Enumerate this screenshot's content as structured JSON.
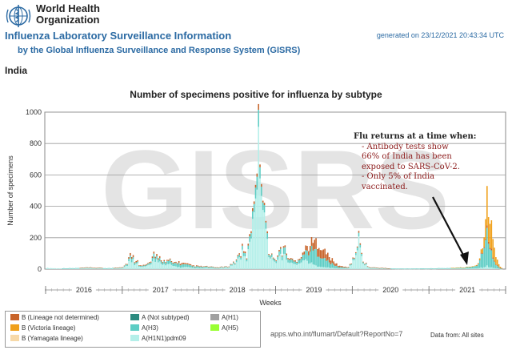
{
  "header": {
    "org_line1": "World Health",
    "org_line2": "Organization",
    "title": "Influenza Laboratory Surveillance Information",
    "subtitle": "by the Global Influenza Surveillance and Response System (GISRS)",
    "generated": "generated on 23/12/2021 20:43:34 UTC",
    "country": "India",
    "logo_icon": "who-emblem-icon"
  },
  "chart_data": {
    "type": "bar",
    "stacked": true,
    "title": "Number of specimens positive for influenza by subtype",
    "xlabel": "Weeks",
    "ylabel": "Number of specimens",
    "ylim": [
      0,
      1000
    ],
    "yticks": [
      0,
      200,
      400,
      600,
      800,
      1000
    ],
    "year_labels": [
      "2016",
      "2017",
      "2018",
      "2019",
      "2020",
      "2021"
    ],
    "grid": true,
    "legend_position": "bottom-left",
    "watermark": "GISRS",
    "series_order": [
      "B (Lineage not determined)",
      "B (Victoria lineage)",
      "B (Yamagata lineage)",
      "A (Not subtyped)",
      "A(H3)",
      "A(H1N1)pdm09",
      "A(H1)",
      "A(H5)"
    ],
    "colors": {
      "B (Lineage not determined)": "#c8642a",
      "B (Victoria lineage)": "#f0a01a",
      "B (Yamagata lineage)": "#f7d9a8",
      "A (Not subtyped)": "#2c8a7f",
      "A(H3)": "#5ccdc4",
      "A(H1N1)pdm09": "#b4efe9",
      "A(H1)": "#a0a0a0",
      "A(H5)": "#99ff33"
    },
    "weeks": [
      {
        "year": 2016,
        "week": 1,
        "h1n1": 8,
        "h3": 0,
        "bnd": 0,
        "bvic": 0
      },
      {
        "year": 2016,
        "week": 8,
        "h1n1": 5,
        "h3": 0,
        "bnd": 0,
        "bvic": 0
      },
      {
        "year": 2016,
        "week": 20,
        "h1n1": 4,
        "h3": 2,
        "bnd": 0,
        "bvic": 0
      },
      {
        "year": 2016,
        "week": 30,
        "h1n1": 6,
        "h3": 3,
        "bnd": 1,
        "bvic": 0
      },
      {
        "year": 2016,
        "week": 45,
        "h1n1": 4,
        "h3": 2,
        "bnd": 0,
        "bvic": 0
      },
      {
        "year": 2017,
        "week": 1,
        "h1n1": 10,
        "h3": 3,
        "bnd": 2,
        "bvic": 0
      },
      {
        "year": 2017,
        "week": 4,
        "h1n1": 25,
        "h3": 10,
        "bnd": 5,
        "bvic": 0
      },
      {
        "year": 2017,
        "week": 5,
        "h1n1": 50,
        "h3": 15,
        "bnd": 10,
        "bvic": 0
      },
      {
        "year": 2017,
        "week": 6,
        "h1n1": 60,
        "h3": 15,
        "bnd": 15,
        "bvic": 0
      },
      {
        "year": 2017,
        "week": 7,
        "h1n1": 40,
        "h3": 20,
        "bnd": 10,
        "bvic": 0
      },
      {
        "year": 2017,
        "week": 8,
        "h1n1": 55,
        "h3": 10,
        "bnd": 12,
        "bvic": 0
      },
      {
        "year": 2017,
        "week": 9,
        "h1n1": 30,
        "h3": 15,
        "bnd": 8,
        "bvic": 0
      },
      {
        "year": 2017,
        "week": 10,
        "h1n1": 45,
        "h3": 10,
        "bnd": 10,
        "bvic": 0
      },
      {
        "year": 2017,
        "week": 12,
        "h1n1": 20,
        "h3": 8,
        "bnd": 5,
        "bvic": 0
      },
      {
        "year": 2017,
        "week": 16,
        "h1n1": 15,
        "h3": 5,
        "bnd": 4,
        "bvic": 0
      },
      {
        "year": 2017,
        "week": 20,
        "h1n1": 30,
        "h3": 12,
        "bnd": 6,
        "bvic": 0
      },
      {
        "year": 2017,
        "week": 22,
        "h1n1": 55,
        "h3": 25,
        "bnd": 10,
        "bvic": 0
      },
      {
        "year": 2017,
        "week": 23,
        "h1n1": 40,
        "h3": 20,
        "bnd": 8,
        "bvic": 0
      },
      {
        "year": 2017,
        "week": 24,
        "h1n1": 60,
        "h3": 20,
        "bnd": 12,
        "bvic": 0
      },
      {
        "year": 2017,
        "week": 26,
        "h1n1": 45,
        "h3": 20,
        "bnd": 10,
        "bvic": 0
      },
      {
        "year": 2017,
        "week": 28,
        "h1n1": 35,
        "h3": 15,
        "bnd": 8,
        "bvic": 0
      },
      {
        "year": 2017,
        "week": 30,
        "h1n1": 25,
        "h3": 15,
        "bnd": 6,
        "bvic": 0
      },
      {
        "year": 2017,
        "week": 33,
        "h1n1": 30,
        "h3": 20,
        "bnd": 6,
        "bvic": 0
      },
      {
        "year": 2017,
        "week": 35,
        "h1n1": 20,
        "h3": 15,
        "bnd": 5,
        "bvic": 0
      },
      {
        "year": 2017,
        "week": 38,
        "h1n1": 15,
        "h3": 25,
        "bnd": 8,
        "bvic": 0
      },
      {
        "year": 2017,
        "week": 40,
        "h1n1": 10,
        "h3": 20,
        "bnd": 10,
        "bvic": 0
      },
      {
        "year": 2017,
        "week": 44,
        "h1n1": 12,
        "h3": 15,
        "bnd": 6,
        "bvic": 0
      },
      {
        "year": 2017,
        "week": 48,
        "h1n1": 8,
        "h3": 10,
        "bnd": 5,
        "bvic": 0
      },
      {
        "year": 2018,
        "week": 1,
        "h1n1": 6,
        "h3": 8,
        "bnd": 4,
        "bvic": 0
      },
      {
        "year": 2018,
        "week": 6,
        "h1n1": 8,
        "h3": 6,
        "bnd": 3,
        "bvic": 0
      },
      {
        "year": 2018,
        "week": 12,
        "h1n1": 5,
        "h3": 4,
        "bnd": 2,
        "bvic": 0
      },
      {
        "year": 2018,
        "week": 20,
        "h1n1": 10,
        "h3": 4,
        "bnd": 2,
        "bvic": 0
      },
      {
        "year": 2018,
        "week": 26,
        "h1n1": 40,
        "h3": 10,
        "bnd": 5,
        "bvic": 0
      },
      {
        "year": 2018,
        "week": 28,
        "h1n1": 90,
        "h3": 20,
        "bnd": 10,
        "bvic": 0
      },
      {
        "year": 2018,
        "week": 29,
        "h1n1": 70,
        "h3": 15,
        "bnd": 10,
        "bvic": 0
      },
      {
        "year": 2018,
        "week": 30,
        "h1n1": 100,
        "h3": 20,
        "bnd": 10,
        "bvic": 0
      },
      {
        "year": 2018,
        "week": 31,
        "h1n1": 80,
        "h3": 20,
        "bnd": 10,
        "bvic": 0
      },
      {
        "year": 2018,
        "week": 33,
        "h1n1": 60,
        "h3": 15,
        "bnd": 8,
        "bvic": 0
      },
      {
        "year": 2018,
        "week": 34,
        "h1n1": 110,
        "h3": 20,
        "bnd": 10,
        "bvic": 0
      },
      {
        "year": 2018,
        "week": 35,
        "h1n1": 150,
        "h3": 30,
        "bnd": 12,
        "bvic": 0
      },
      {
        "year": 2018,
        "week": 36,
        "h1n1": 230,
        "h3": 40,
        "bnd": 15,
        "bvic": 0
      },
      {
        "year": 2018,
        "week": 37,
        "h1n1": 330,
        "h3": 50,
        "bnd": 20,
        "bvic": 0
      },
      {
        "year": 2018,
        "week": 38,
        "h1n1": 420,
        "h3": 60,
        "bnd": 20,
        "bvic": 0
      },
      {
        "year": 2018,
        "week": 39,
        "h1n1": 520,
        "h3": 80,
        "bnd": 20,
        "bvic": 0
      },
      {
        "year": 2018,
        "week": 40,
        "h1n1": 620,
        "h3": 100,
        "bnd": 25,
        "bvic": 0
      },
      {
        "year": 2018,
        "week": 41,
        "h1n1": 750,
        "h3": 90,
        "bnd": 30,
        "bvic": 0
      },
      {
        "year": 2018,
        "week": 42,
        "h1n1": 650,
        "h3": 80,
        "bnd": 20,
        "bvic": 0
      },
      {
        "year": 2018,
        "week": 43,
        "h1n1": 560,
        "h3": 70,
        "bnd": 20,
        "bvic": 0
      },
      {
        "year": 2018,
        "week": 44,
        "h1n1": 480,
        "h3": 60,
        "bnd": 15,
        "bvic": 0
      },
      {
        "year": 2018,
        "week": 45,
        "h1n1": 380,
        "h3": 50,
        "bnd": 15,
        "bvic": 0
      },
      {
        "year": 2018,
        "week": 46,
        "h1n1": 260,
        "h3": 40,
        "bnd": 10,
        "bvic": 0
      },
      {
        "year": 2018,
        "week": 47,
        "h1n1": 160,
        "h3": 30,
        "bnd": 10,
        "bvic": 0
      },
      {
        "year": 2018,
        "week": 48,
        "h1n1": 100,
        "h3": 20,
        "bnd": 8,
        "bvic": 0
      },
      {
        "year": 2018,
        "week": 50,
        "h1n1": 70,
        "h3": 15,
        "bnd": 5,
        "bvic": 0
      },
      {
        "year": 2018,
        "week": 52,
        "h1n1": 40,
        "h3": 10,
        "bnd": 5,
        "bvic": 0
      },
      {
        "year": 2019,
        "week": 2,
        "h1n1": 60,
        "h3": 20,
        "bnd": 8,
        "bvic": 0
      },
      {
        "year": 2019,
        "week": 4,
        "h1n1": 90,
        "h3": 30,
        "bnd": 10,
        "bvic": 0
      },
      {
        "year": 2019,
        "week": 5,
        "h1n1": 70,
        "h3": 30,
        "bnd": 8,
        "bvic": 0
      },
      {
        "year": 2019,
        "week": 6,
        "h1n1": 100,
        "h3": 40,
        "bnd": 10,
        "bvic": 0
      },
      {
        "year": 2019,
        "week": 8,
        "h1n1": 60,
        "h3": 30,
        "bnd": 10,
        "bvic": 0
      },
      {
        "year": 2019,
        "week": 10,
        "h1n1": 40,
        "h3": 20,
        "bnd": 8,
        "bvic": 0
      },
      {
        "year": 2019,
        "week": 14,
        "h1n1": 30,
        "h3": 15,
        "bnd": 6,
        "bvic": 0
      },
      {
        "year": 2019,
        "week": 18,
        "h1n1": 50,
        "h3": 30,
        "bnd": 10,
        "bvic": 0
      },
      {
        "year": 2019,
        "week": 20,
        "h1n1": 60,
        "h3": 40,
        "bnd": 20,
        "bvic": 0
      },
      {
        "year": 2019,
        "week": 22,
        "h1n1": 50,
        "h3": 60,
        "bnd": 30,
        "bvic": 0
      },
      {
        "year": 2019,
        "week": 24,
        "h1n1": 40,
        "h3": 80,
        "bnd": 40,
        "bvic": 0
      },
      {
        "year": 2019,
        "week": 26,
        "h1n1": 30,
        "h3": 90,
        "bnd": 50,
        "bvic": 0
      },
      {
        "year": 2019,
        "week": 28,
        "h1n1": 20,
        "h3": 90,
        "bnd": 60,
        "bvic": 0
      },
      {
        "year": 2019,
        "week": 30,
        "h1n1": 20,
        "h3": 80,
        "bnd": 70,
        "bvic": 0
      },
      {
        "year": 2019,
        "week": 32,
        "h1n1": 15,
        "h3": 60,
        "bnd": 60,
        "bvic": 0
      },
      {
        "year": 2019,
        "week": 34,
        "h1n1": 10,
        "h3": 50,
        "bnd": 50,
        "bvic": 0
      },
      {
        "year": 2019,
        "week": 36,
        "h1n1": 10,
        "h3": 40,
        "bnd": 40,
        "bvic": 0
      },
      {
        "year": 2019,
        "week": 38,
        "h1n1": 8,
        "h3": 30,
        "bnd": 30,
        "bvic": 0
      },
      {
        "year": 2019,
        "week": 40,
        "h1n1": 6,
        "h3": 20,
        "bnd": 20,
        "bvic": 0
      },
      {
        "year": 2019,
        "week": 43,
        "h1n1": 5,
        "h3": 10,
        "bnd": 10,
        "bvic": 0
      },
      {
        "year": 2019,
        "week": 46,
        "h1n1": 4,
        "h3": 6,
        "bnd": 6,
        "bvic": 0
      },
      {
        "year": 2019,
        "week": 50,
        "h1n1": 6,
        "h3": 4,
        "bnd": 4,
        "bvic": 0
      },
      {
        "year": 2020,
        "week": 2,
        "h1n1": 60,
        "h3": 10,
        "bnd": 5,
        "bvic": 0
      },
      {
        "year": 2020,
        "week": 4,
        "h1n1": 140,
        "h3": 20,
        "bnd": 8,
        "bvic": 0
      },
      {
        "year": 2020,
        "week": 5,
        "h1n1": 180,
        "h3": 20,
        "bnd": 10,
        "bvic": 0
      },
      {
        "year": 2020,
        "week": 6,
        "h1n1": 120,
        "h3": 15,
        "bnd": 8,
        "bvic": 0
      },
      {
        "year": 2020,
        "week": 8,
        "h1n1": 40,
        "h3": 10,
        "bnd": 5,
        "bvic": 0
      },
      {
        "year": 2020,
        "week": 12,
        "h1n1": 8,
        "h3": 2,
        "bnd": 2,
        "bvic": 0
      },
      {
        "year": 2020,
        "week": 30,
        "h1n1": 2,
        "h3": 1,
        "bnd": 0,
        "bvic": 0
      },
      {
        "year": 2020,
        "week": 50,
        "h1n1": 2,
        "h3": 2,
        "bnd": 0,
        "bvic": 0
      },
      {
        "year": 2021,
        "week": 10,
        "h1n1": 3,
        "h3": 3,
        "bnd": 0,
        "bvic": 0
      },
      {
        "year": 2021,
        "week": 25,
        "h1n1": 4,
        "h3": 6,
        "bnd": 0,
        "bvic": 1
      },
      {
        "year": 2021,
        "week": 32,
        "h1n1": 5,
        "h3": 15,
        "bnd": 0,
        "bvic": 3
      },
      {
        "year": 2021,
        "week": 34,
        "h1n1": 6,
        "h3": 30,
        "bnd": 2,
        "bvic": 5
      },
      {
        "year": 2021,
        "week": 35,
        "h1n1": 8,
        "h3": 50,
        "bnd": 3,
        "bvic": 10
      },
      {
        "year": 2021,
        "week": 36,
        "h1n1": 10,
        "h3": 80,
        "bnd": 5,
        "bvic": 20
      },
      {
        "year": 2021,
        "week": 37,
        "h1n1": 10,
        "h3": 120,
        "bnd": 5,
        "bvic": 40
      },
      {
        "year": 2021,
        "week": 38,
        "h1n1": 15,
        "h3": 160,
        "bnd": 10,
        "bvic": 80
      },
      {
        "year": 2021,
        "week": 39,
        "h1n1": 15,
        "h3": 190,
        "bnd": 10,
        "bvic": 140
      },
      {
        "year": 2021,
        "week": 40,
        "h1n1": 20,
        "h3": 200,
        "bnd": 15,
        "bvic": 210
      },
      {
        "year": 2021,
        "week": 41,
        "h1n1": 15,
        "h3": 180,
        "bnd": 15,
        "bvic": 190
      },
      {
        "year": 2021,
        "week": 42,
        "h1n1": 10,
        "h3": 130,
        "bnd": 10,
        "bvic": 170
      },
      {
        "year": 2021,
        "week": 43,
        "h1n1": 10,
        "h3": 90,
        "bnd": 10,
        "bvic": 150
      },
      {
        "year": 2021,
        "week": 44,
        "h1n1": 8,
        "h3": 60,
        "bnd": 8,
        "bvic": 120
      },
      {
        "year": 2021,
        "week": 45,
        "h1n1": 6,
        "h3": 40,
        "bnd": 6,
        "bvic": 80
      },
      {
        "year": 2021,
        "week": 46,
        "h1n1": 5,
        "h3": 25,
        "bnd": 5,
        "bvic": 50
      },
      {
        "year": 2021,
        "week": 47,
        "h1n1": 4,
        "h3": 15,
        "bnd": 4,
        "bvic": 30
      },
      {
        "year": 2021,
        "week": 48,
        "h1n1": 3,
        "h3": 8,
        "bnd": 3,
        "bvic": 15
      },
      {
        "year": 2021,
        "week": 49,
        "h1n1": 2,
        "h3": 5,
        "bnd": 2,
        "bvic": 8
      },
      {
        "year": 2021,
        "week": 50,
        "h1n1": 2,
        "h3": 3,
        "bnd": 1,
        "bvic": 4
      }
    ]
  },
  "annotation": {
    "heading": "Flu returns at a time when:",
    "line1": "- Antibody tests show",
    "line2": "66% of India has been",
    "line3": "exposed to SARS-CoV-2.",
    "line4": "- Only 5% of India",
    "line5": "vaccinated."
  },
  "legend": {
    "b_nd": "B (Lineage not determined)",
    "b_vic": "B (Victoria lineage)",
    "b_yam": "B (Yamagata lineage)",
    "a_ns": "A (Not subtyped)",
    "a_h3": "A(H3)",
    "a_h1n1": "A(H1N1)pdm09",
    "a_h1": "A(H1)",
    "a_h5": "A(H5)"
  },
  "footer": {
    "url": "apps.who.int/flumart/Default?ReportNo=7",
    "source": "Data from: All sites"
  }
}
